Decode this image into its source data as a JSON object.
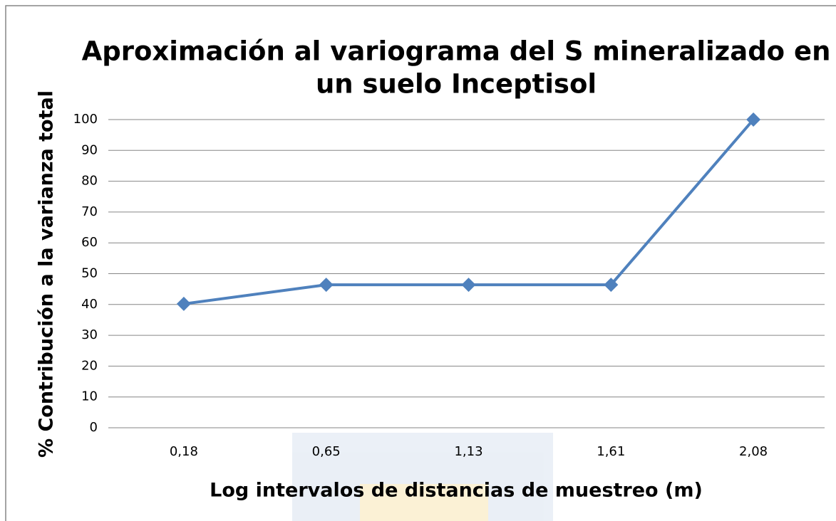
{
  "chart_data": {
    "type": "line",
    "title": [
      "Aproximación al variograma del S mineralizado en",
      "un suelo Inceptisol"
    ],
    "x_label": "Log intervalos de distancias de muestreo (m)",
    "y_label": "% Contribución a la varianza total",
    "categories": [
      "0,18",
      "0,65",
      "1,13",
      "1,61",
      "2,08"
    ],
    "series": [
      {
        "name": "S mineralizado",
        "color": "#4f81bd",
        "values": [
          40.2,
          46.4,
          46.4,
          46.4,
          100
        ]
      }
    ],
    "ylim": [
      0,
      100
    ],
    "yticks": [
      0,
      10,
      20,
      30,
      40,
      50,
      60,
      70,
      80,
      90,
      100
    ],
    "grid": true,
    "legend": false
  }
}
